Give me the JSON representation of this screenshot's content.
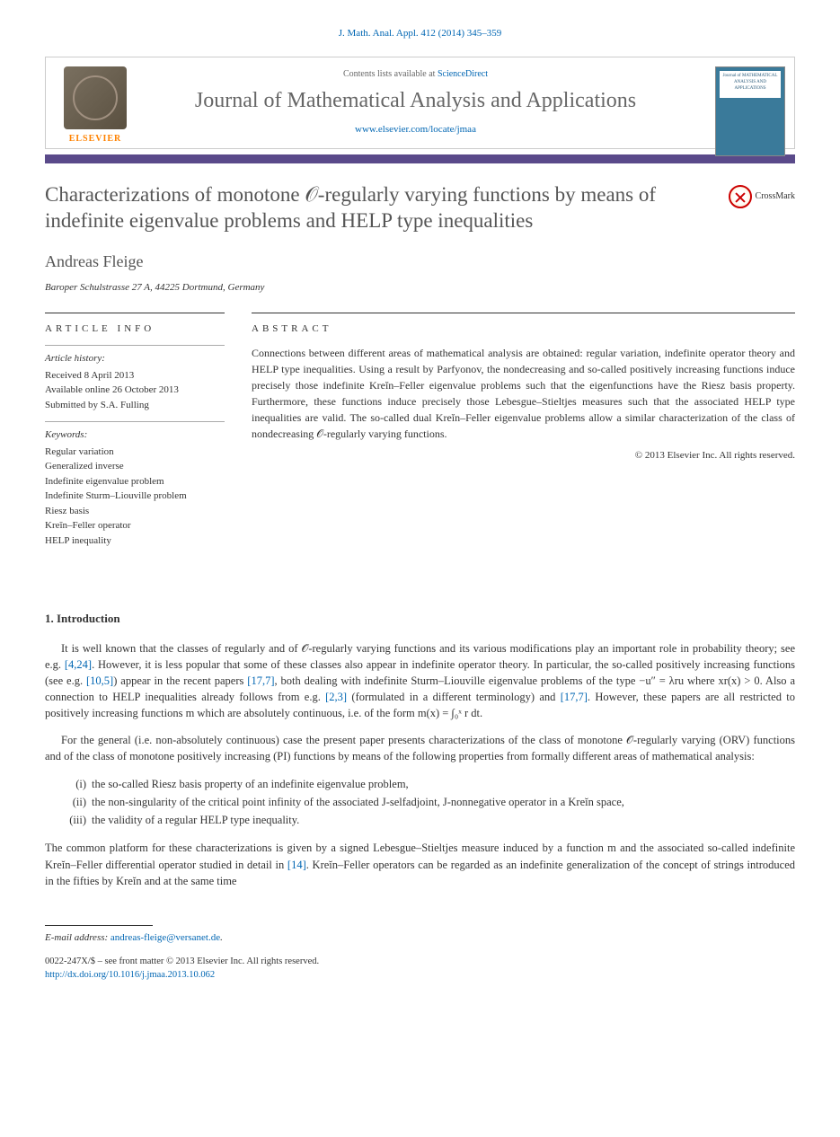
{
  "citation": "J. Math. Anal. Appl. 412 (2014) 345–359",
  "header": {
    "contents_prefix": "Contents lists available at ",
    "contents_link": "ScienceDirect",
    "journal_name": "Journal of Mathematical Analysis and Applications",
    "journal_url": "www.elsevier.com/locate/jmaa",
    "publisher": "ELSEVIER",
    "cover_text": "Journal of MATHEMATICAL ANALYSIS AND APPLICATIONS"
  },
  "color_bar": "#5a4a8a",
  "title": "Characterizations of monotone 𝒪-regularly varying functions by means of indefinite eigenvalue problems and HELP type inequalities",
  "crossmark_label": "CrossMark",
  "author": "Andreas Fleige",
  "affiliation": "Baroper Schulstrasse 27 A, 44225 Dortmund, Germany",
  "info": {
    "label": "article info",
    "history_heading": "Article history:",
    "history": [
      "Received 8 April 2013",
      "Available online 26 October 2013",
      "Submitted by S.A. Fulling"
    ],
    "keywords_heading": "Keywords:",
    "keywords": [
      "Regular variation",
      "Generalized inverse",
      "Indefinite eigenvalue problem",
      "Indefinite Sturm–Liouville problem",
      "Riesz basis",
      "Kreĭn–Feller operator",
      "HELP inequality"
    ]
  },
  "abstract": {
    "label": "abstract",
    "text": "Connections between different areas of mathematical analysis are obtained: regular variation, indefinite operator theory and HELP type inequalities. Using a result by Parfyonov, the nondecreasing and so-called positively increasing functions induce precisely those indefinite Kreĭn–Feller eigenvalue problems such that the eigenfunctions have the Riesz basis property. Furthermore, these functions induce precisely those Lebesgue–Stieltjes measures such that the associated HELP type inequalities are valid. The so-called dual Kreĭn–Feller eigenvalue problems allow a similar characterization of the class of nondecreasing 𝒪-regularly varying functions.",
    "copyright": "© 2013 Elsevier Inc. All rights reserved."
  },
  "intro": {
    "heading": "1. Introduction",
    "p1_a": "It is well known that the classes of regularly and of 𝒪-regularly varying functions and its various modifications play an important role in probability theory; see e.g. ",
    "p1_ref1": "[4,24]",
    "p1_b": ". However, it is less popular that some of these classes also appear in indefinite operator theory. In particular, the so-called positively increasing functions (see e.g. ",
    "p1_ref2": "[10,5]",
    "p1_c": ") appear in the recent papers ",
    "p1_ref3": "[17,7]",
    "p1_d": ", both dealing with indefinite Sturm–Liouville eigenvalue problems of the type −u″ = λru where xr(x) > 0. Also a connection to HELP inequalities already follows from e.g. ",
    "p1_ref4": "[2,3]",
    "p1_e": " (formulated in a different terminology) and ",
    "p1_ref5": "[17,7]",
    "p1_f": ". However, these papers are all restricted to positively increasing functions m which are absolutely continuous, i.e. of the form m(x) = ∫₀ˣ r dt.",
    "p2": "For the general (i.e. non-absolutely continuous) case the present paper presents characterizations of the class of monotone 𝒪-regularly varying (ORV) functions and of the class of monotone positively increasing (PI) functions by means of the following properties from formally different areas of mathematical analysis:",
    "list": [
      {
        "num": "(i)",
        "text": "the so-called Riesz basis property of an indefinite eigenvalue problem,"
      },
      {
        "num": "(ii)",
        "text": "the non-singularity of the critical point infinity of the associated J-selfadjoint, J-nonnegative operator in a Kreĭn space,"
      },
      {
        "num": "(iii)",
        "text": "the validity of a regular HELP type inequality."
      }
    ],
    "p3_a": "The common platform for these characterizations is given by a signed Lebesgue–Stieltjes measure induced by a function m and the associated so-called indefinite Kreĭn–Feller differential operator studied in detail in ",
    "p3_ref1": "[14]",
    "p3_b": ". Kreĭn–Feller operators can be regarded as an indefinite generalization of the concept of strings introduced in the fifties by Kreĭn and at the same time"
  },
  "footer": {
    "email_label": "E-mail address: ",
    "email": "andreas-fleige@versanet.de",
    "line1": "0022-247X/$ – see front matter © 2013 Elsevier Inc. All rights reserved.",
    "doi": "http://dx.doi.org/10.1016/j.jmaa.2013.10.062"
  }
}
